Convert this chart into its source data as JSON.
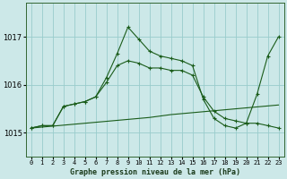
{
  "title": "Graphe pression niveau de la mer (hPa)",
  "bg_color": "#cce8e8",
  "grid_color": "#99cccc",
  "line_color": "#1a5c1a",
  "x_labels": [
    "0",
    "1",
    "2",
    "3",
    "4",
    "5",
    "6",
    "7",
    "8",
    "9",
    "10",
    "11",
    "12",
    "13",
    "14",
    "15",
    "16",
    "17",
    "18",
    "19",
    "20",
    "21",
    "22",
    "23"
  ],
  "xlim": [
    -0.5,
    23.5
  ],
  "ylim": [
    1014.5,
    1017.7
  ],
  "yticks": [
    1015,
    1016,
    1017
  ],
  "line_flat": [
    1015.1,
    1015.12,
    1015.14,
    1015.16,
    1015.18,
    1015.2,
    1015.22,
    1015.24,
    1015.26,
    1015.28,
    1015.3,
    1015.32,
    1015.35,
    1015.38,
    1015.4,
    1015.42,
    1015.44,
    1015.46,
    1015.48,
    1015.5,
    1015.52,
    1015.54,
    1015.56,
    1015.58
  ],
  "line_mid": [
    1015.1,
    1015.15,
    1015.15,
    1015.55,
    1015.6,
    1015.65,
    1015.75,
    1016.05,
    1016.4,
    1016.5,
    1016.45,
    1016.35,
    1016.35,
    1016.3,
    1016.3,
    1016.2,
    1015.75,
    1015.45,
    1015.3,
    1015.25,
    1015.2,
    1015.2,
    1015.15,
    1015.1
  ],
  "line_main": [
    1015.1,
    1015.15,
    1015.15,
    1015.55,
    1015.6,
    1015.65,
    1015.75,
    1016.15,
    1016.65,
    1017.2,
    1016.95,
    1016.7,
    1016.6,
    1016.55,
    1016.5,
    1016.4,
    1015.7,
    1015.3,
    1015.15,
    1015.1,
    1015.2,
    1015.8,
    1016.6,
    1017.0
  ]
}
